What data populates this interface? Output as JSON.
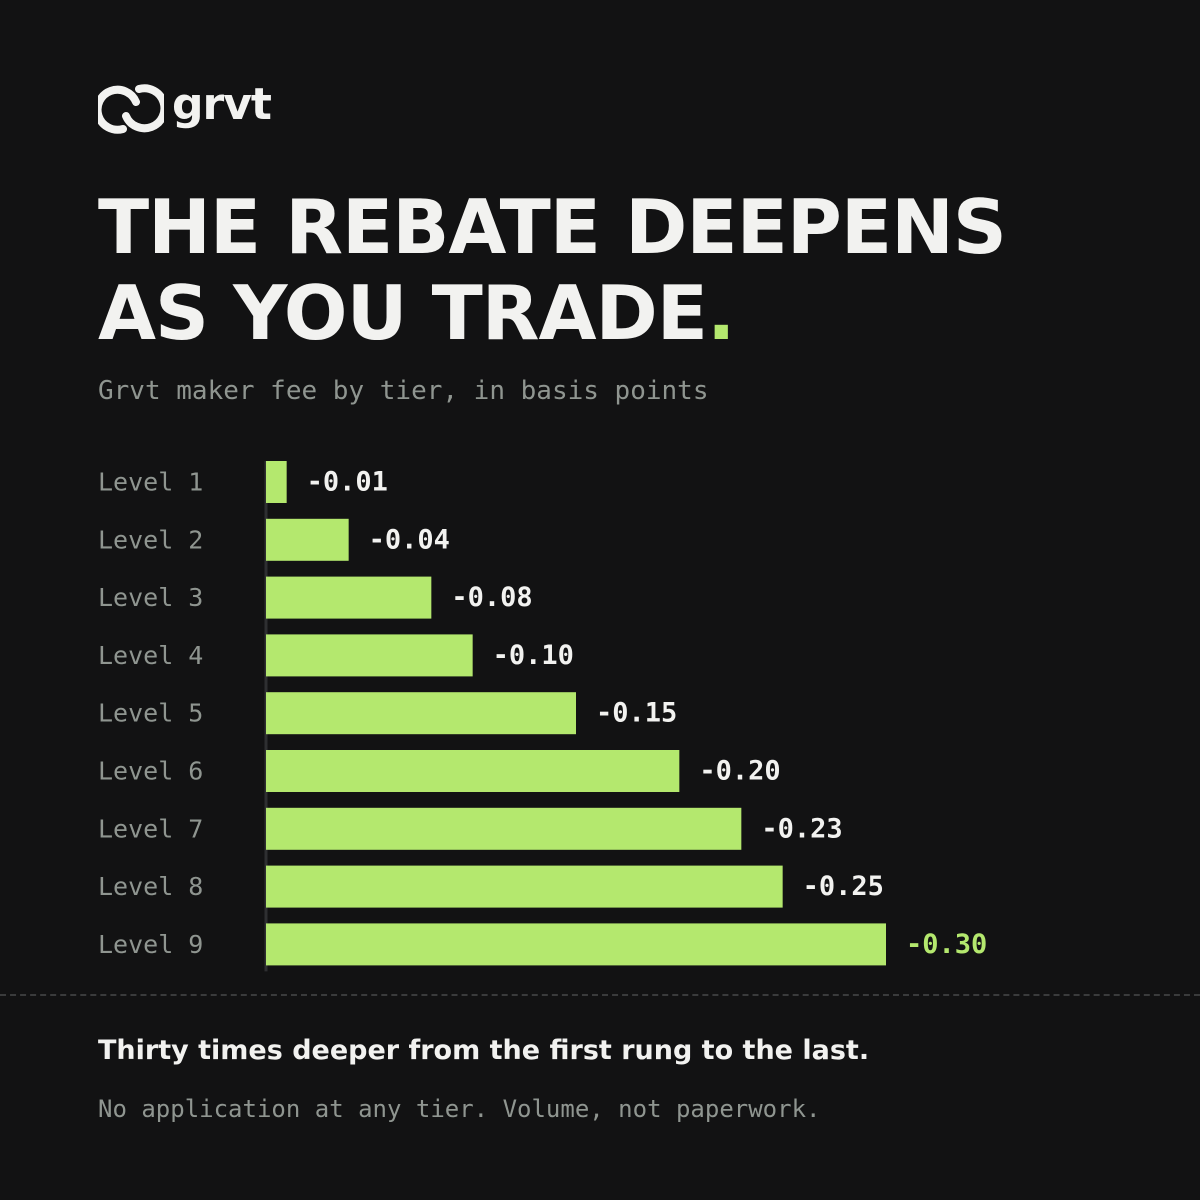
{
  "brand": {
    "name": "grvt",
    "logo_icon": "grvt-link-icon",
    "text_color": "#f2f2f0"
  },
  "headline": {
    "line1": "THE REBATE DEEPENS",
    "line2": "AS YOU TRADE",
    "punctuation": "."
  },
  "subtitle": "Grvt maker fee by tier, in basis points",
  "colors": {
    "background": "#121213",
    "accent": "#b4e86e",
    "bar": "#b4e86e",
    "text": "#f2f2f0",
    "muted": "#8f9590",
    "axis": "#2e2f31"
  },
  "chart_data": {
    "type": "bar",
    "orientation": "horizontal",
    "categories": [
      "Level 1",
      "Level 2",
      "Level 3",
      "Level 4",
      "Level 5",
      "Level 6",
      "Level 7",
      "Level 8",
      "Level 9"
    ],
    "values": [
      -0.01,
      -0.04,
      -0.08,
      -0.1,
      -0.15,
      -0.2,
      -0.23,
      -0.25,
      -0.3
    ],
    "value_labels": [
      "-0.01",
      "-0.04",
      "-0.08",
      "-0.10",
      "-0.15",
      "-0.20",
      "-0.23",
      "-0.25",
      "-0.30"
    ],
    "highlight_last": true,
    "xlim": [
      0,
      -0.3
    ],
    "grid": false,
    "legend": "none"
  },
  "footer": {
    "headline": "Thirty times deeper from the first rung to the last.",
    "note": "No application at any tier. Volume, not paperwork."
  }
}
